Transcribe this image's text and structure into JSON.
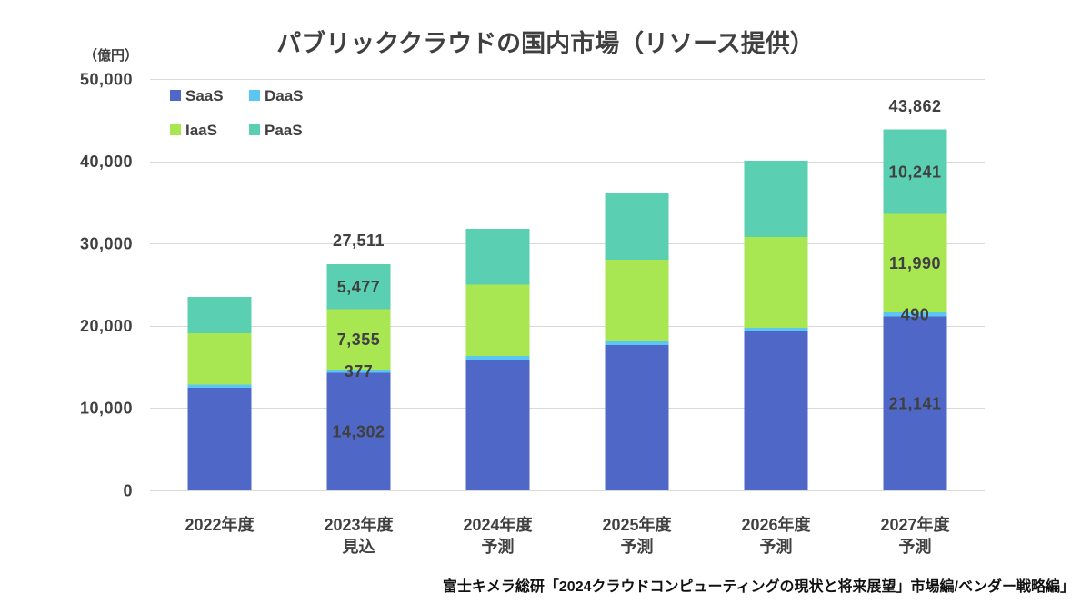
{
  "chart_data": {
    "type": "bar",
    "stacked": true,
    "title": "パブリッククラウドの国内市場（リソース提供）",
    "ylabel": "（億円）",
    "categories": [
      "2022年度",
      "2023年度",
      "2024年度",
      "2025年度",
      "2026年度",
      "2027年度"
    ],
    "category_notes": [
      "",
      "見込",
      "予測",
      "予測",
      "予測",
      "予測"
    ],
    "series": [
      {
        "name": "SaaS",
        "color": "#4F68C8",
        "values": [
          12500,
          14302,
          15900,
          17650,
          19300,
          21141
        ]
      },
      {
        "name": "DaaS",
        "color": "#5BC6F2",
        "values": [
          350,
          377,
          420,
          440,
          460,
          490
        ]
      },
      {
        "name": "IaaS",
        "color": "#A8E652",
        "values": [
          6250,
          7355,
          8700,
          9950,
          11050,
          11990
        ]
      },
      {
        "name": "PaaS",
        "color": "#5BCFB1",
        "values": [
          4400,
          5477,
          6780,
          8060,
          9260,
          10241
        ]
      }
    ],
    "data_labels": [
      {
        "category": "2023年度",
        "values": [
          "14,302",
          "377",
          "7,355",
          "5,477"
        ],
        "total": "27,511"
      },
      {
        "category": "2027年度",
        "values": [
          "21,141",
          "490",
          "11,990",
          "10,241"
        ],
        "total": "43,862"
      }
    ],
    "ylim": [
      0,
      50000
    ],
    "yticks": [
      0,
      10000,
      20000,
      30000,
      40000,
      50000
    ],
    "ytick_labels": [
      "0",
      "10,000",
      "20,000",
      "30,000",
      "40,000",
      "50,000"
    ],
    "grid": true,
    "legend_position": "top-left"
  },
  "source": "富士キメラ総研「2024クラウドコンピューティングの現状と将来展望」市場編/ベンダー戦略編」",
  "colors": {
    "text": "#404040",
    "grid": "#D9D9D9",
    "background": "#FFFFFF"
  }
}
